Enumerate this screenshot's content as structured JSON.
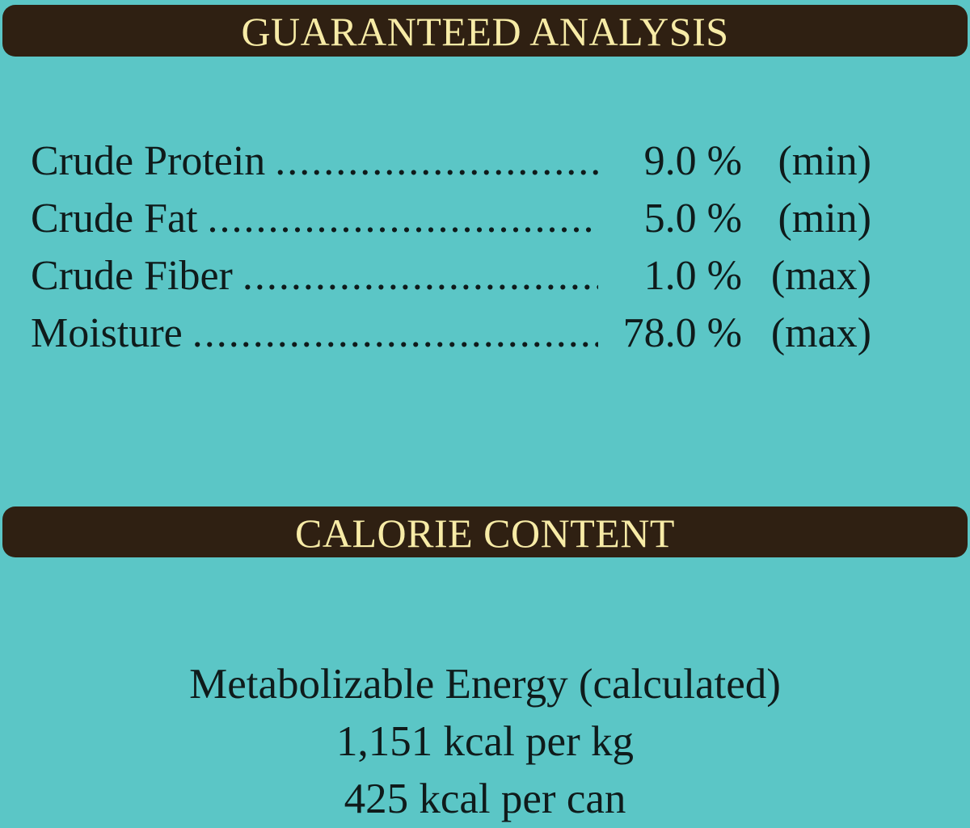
{
  "guaranteed_analysis": {
    "title": "GUARANTEED ANALYSIS",
    "rows": [
      {
        "label": "Crude Protein",
        "value": "9.0 %",
        "qualifier": "(min)"
      },
      {
        "label": "Crude Fat",
        "value": "5.0 %",
        "qualifier": "(min)"
      },
      {
        "label": "Crude Fiber",
        "value": "1.0 %",
        "qualifier": "(max)"
      },
      {
        "label": "Moisture",
        "value": "78.0 %",
        "qualifier": "(max)"
      }
    ]
  },
  "calorie_content": {
    "title": "CALORIE CONTENT",
    "lines": [
      "Metabolizable Energy (calculated)",
      "1,151 kcal per kg",
      "425 kcal per can"
    ]
  },
  "colors": {
    "background": "#5bc6c6",
    "banner": "#2f2012",
    "banner_text": "#f7eba6",
    "body_text": "#0f1b1b"
  }
}
